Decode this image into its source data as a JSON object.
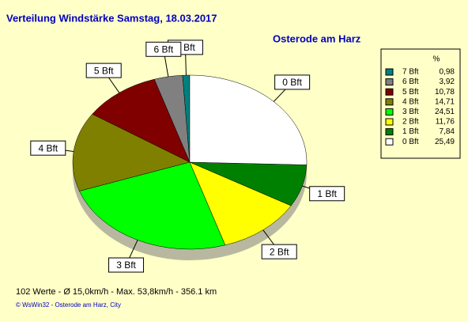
{
  "chart_data": {
    "type": "pie",
    "title": "Verteilung Windstärke  Samstag, 18.03.2017",
    "subtitle": "Osterode am Harz",
    "legend_header": "%",
    "categories": [
      "7 Bft",
      "6 Bft",
      "5 Bft",
      "4 Bft",
      "3 Bft",
      "2 Bft",
      "1 Bft",
      "0 Bft"
    ],
    "values": [
      0.98,
      3.92,
      10.78,
      14.71,
      24.51,
      11.76,
      7.84,
      25.49
    ],
    "value_labels": [
      "0,98",
      "3,92",
      "10,78",
      "14,71",
      "24,51",
      "11,76",
      "7,84",
      "25,49"
    ],
    "colors": [
      "#008080",
      "#808080",
      "#800000",
      "#808000",
      "#00ff00",
      "#ffff00",
      "#008000",
      "#ffffff"
    ],
    "footer": "102 Werte   -   Ø 15,0km/h  -  Max. 53,8km/h   -   356.1 km",
    "credit": "© WsWin32  -  Osterode am Harz, City"
  }
}
